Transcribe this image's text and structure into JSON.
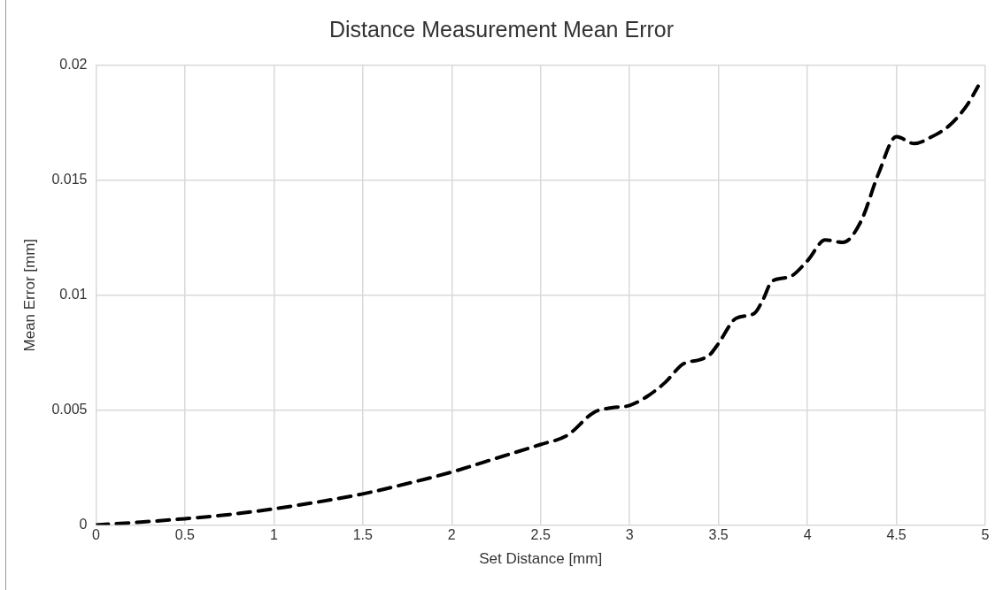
{
  "chart_data": {
    "type": "line",
    "title": "Distance Measurement Mean Error",
    "xlabel": "Set Distance [mm]",
    "ylabel": "Mean Error [mm]",
    "x": [
      0,
      0.25,
      0.5,
      0.75,
      1,
      1.25,
      1.5,
      1.75,
      2,
      2.25,
      2.5,
      2.65,
      2.8,
      2.9,
      3,
      3.1,
      3.2,
      3.3,
      3.4,
      3.45,
      3.5,
      3.6,
      3.7,
      3.75,
      3.8,
      3.9,
      4,
      4.1,
      4.2,
      4.3,
      4.4,
      4.5,
      4.6,
      4.7,
      4.8,
      4.9,
      4.96
    ],
    "series": [
      {
        "color": "#000000",
        "values": [
          0,
          0.00012,
          0.00027,
          0.00045,
          0.0007,
          0.001,
          0.00135,
          0.0018,
          0.0023,
          0.0029,
          0.0035,
          0.0039,
          0.0049,
          0.0051,
          0.0052,
          0.0056,
          0.0062,
          0.007,
          0.0072,
          0.0074,
          0.0079,
          0.009,
          0.0092,
          0.0098,
          0.0106,
          0.0108,
          0.0115,
          0.0124,
          0.0123,
          0.0132,
          0.0153,
          0.0169,
          0.0166,
          0.0169,
          0.0174,
          0.0183,
          0.0191
        ]
      }
    ],
    "xlim": [
      0,
      5
    ],
    "xticks": [
      0,
      0.5,
      1,
      1.5,
      2,
      2.5,
      3,
      3.5,
      4,
      4.5,
      5
    ],
    "ylim": [
      0,
      0.02
    ],
    "yticks": [
      0,
      0.005,
      0.01,
      0.015,
      0.02
    ],
    "grid": true,
    "legend": false,
    "marker": "none",
    "line_style": "dashed"
  }
}
